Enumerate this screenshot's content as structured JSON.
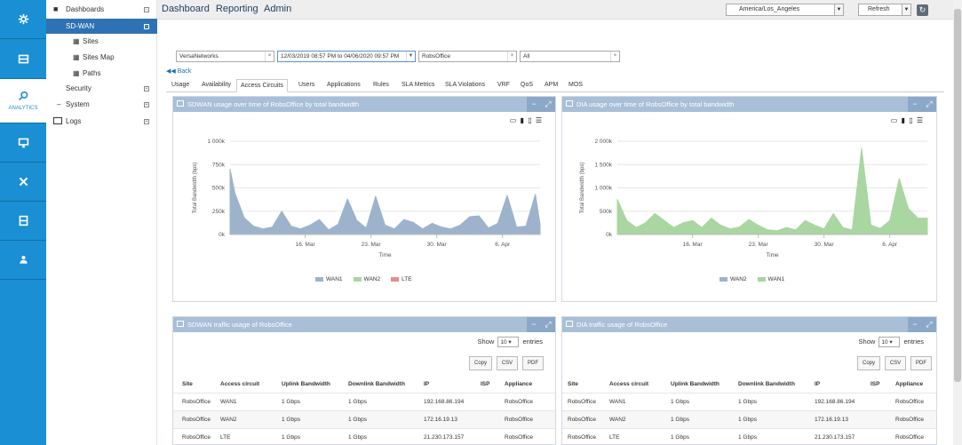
{
  "colors": {
    "rail": "#1a8fd3",
    "panel_head": "#a8bfd7",
    "wan1": "#9db3cc",
    "wan2": "#a9d6a1",
    "lte": "#e08f8f"
  },
  "rail": {
    "items": [
      "settings-icon",
      "dashboard-icon",
      "analytics-icon",
      "monitor-icon",
      "tools-icon",
      "inventory-icon",
      "users-icon"
    ],
    "analytics_label": "ANALYTICS"
  },
  "tree": {
    "dashboards": "Dashboards",
    "sdwan": "SD-WAN",
    "sites": "Sites",
    "sites_map": "Sites Map",
    "paths": "Paths",
    "security": "Security",
    "system": "System",
    "logs": "Logs"
  },
  "topbar": {
    "nav": [
      "Dashboard",
      "Reporting",
      "Admin"
    ],
    "timezone": "America/Los_Angeles",
    "refresh": "Refresh"
  },
  "filters": {
    "org": "VersaNetworks",
    "range": "12/03/2019 08:57 PM to 04/06/2020 09:57 PM",
    "site": "RobsOffice",
    "all": "All"
  },
  "back": "Back",
  "tabs": [
    "Usage",
    "Availability",
    "Access Circuits",
    "Users",
    "Applications",
    "Rules",
    "SLA Metrics",
    "SLA Violations",
    "VRF",
    "QoS",
    "APM",
    "MOS"
  ],
  "left_chart_panel": {
    "title": "SDWAN usage over time of RobsOffice by total bandwidth"
  },
  "right_chart_panel": {
    "title": "DIA usage over time of RobsOffice by total bandwidth"
  },
  "chart_data": [
    {
      "type": "area",
      "title": "SDWAN usage over time of RobsOffice by total bandwidth",
      "xlabel": "Time",
      "ylabel": "Total Bandwidth (bps)",
      "ylim": [
        0,
        1000000
      ],
      "yticks": [
        "0k",
        "250k",
        "500k",
        "750k",
        "1 000k"
      ],
      "xticks": [
        "16. Mar",
        "23. Mar",
        "30. Mar",
        "6. Apr"
      ],
      "x_range_days": [
        0,
        33
      ],
      "x_tick_days": [
        8,
        15,
        22,
        29
      ],
      "series": [
        {
          "name": "WAN1",
          "color": "#9db3cc",
          "x": [
            0,
            0.5,
            1.5,
            2.5,
            3.5,
            4.5,
            5.5,
            6.5,
            7.5,
            8.5,
            9.5,
            10.5,
            11.5,
            12.5,
            13.5,
            14.5,
            15.5,
            16.5,
            17.5,
            18.5,
            19.5,
            20.5,
            21.5,
            22.5,
            23.5,
            24.5,
            25.5,
            26.5,
            27.5,
            28.5,
            29.5,
            30.5,
            31.5,
            32.5,
            33
          ],
          "values": [
            700000,
            450000,
            180000,
            90000,
            60000,
            80000,
            250000,
            90000,
            60000,
            100000,
            160000,
            50000,
            110000,
            380000,
            150000,
            70000,
            410000,
            100000,
            60000,
            160000,
            130000,
            60000,
            120000,
            80000,
            60000,
            100000,
            190000,
            200000,
            70000,
            120000,
            420000,
            80000,
            90000,
            430000,
            110000
          ]
        },
        {
          "name": "WAN2",
          "color": "#a9d6a1",
          "x": [],
          "values": []
        },
        {
          "name": "LTE",
          "color": "#e08f8f",
          "x": [],
          "values": []
        }
      ]
    },
    {
      "type": "area",
      "title": "DIA usage over time of RobsOffice by total bandwidth",
      "xlabel": "Time",
      "ylabel": "Total Bandwidth (bps)",
      "ylim": [
        0,
        2000000
      ],
      "yticks": [
        "0k",
        "500k",
        "1 000k",
        "1 500k",
        "2 000k"
      ],
      "xticks": [
        "16. Mar",
        "23. Mar",
        "30. Mar",
        "6. Apr"
      ],
      "x_range_days": [
        0,
        33
      ],
      "x_tick_days": [
        8,
        15,
        22,
        29
      ],
      "series": [
        {
          "name": "WAN2",
          "color": "#9db3cc",
          "x": [],
          "values": []
        },
        {
          "name": "WAN1",
          "color": "#a9d6a1",
          "x": [
            0,
            1,
            2,
            3,
            4,
            5,
            6,
            7,
            8,
            9,
            10,
            11,
            12,
            13,
            14,
            15,
            16,
            17,
            18,
            19,
            20,
            21,
            22,
            23,
            24,
            25,
            26,
            27,
            28,
            29,
            30,
            31,
            32,
            33
          ],
          "values": [
            750000,
            300000,
            150000,
            250000,
            450000,
            300000,
            150000,
            250000,
            300000,
            150000,
            350000,
            200000,
            120000,
            160000,
            320000,
            200000,
            100000,
            80000,
            150000,
            100000,
            300000,
            200000,
            120000,
            450000,
            150000,
            100000,
            1850000,
            200000,
            130000,
            300000,
            1200000,
            550000,
            350000,
            350000
          ]
        }
      ]
    }
  ],
  "left_table_panel": {
    "title": "SDWAN traffic usage of RobsOffice",
    "show": "Show",
    "entries_count": "10",
    "entries": "entries",
    "buttons": [
      "Copy",
      "CSV",
      "PDF"
    ],
    "columns": [
      "Site",
      "Access circuit",
      "Uplink Bandwidth",
      "Downlink Bandwidth",
      "IP",
      "ISP",
      "Appliance"
    ],
    "rows": [
      [
        "RobsOffice",
        "WAN1",
        "1 Gbps",
        "1 Gbps",
        "192.168.86.194",
        "",
        "RobsOffice"
      ],
      [
        "RobsOffice",
        "WAN2",
        "1 Gbps",
        "1 Gbps",
        "172.16.19.13",
        "",
        "RobsOffice"
      ],
      [
        "RobsOffice",
        "LTE",
        "1 Gbps",
        "1 Gbps",
        "21.230.173.157",
        "",
        "RobsOffice"
      ]
    ]
  },
  "right_table_panel": {
    "title": "DIA traffic usage of RobsOffice",
    "show": "Show",
    "entries_count": "10",
    "entries": "entries",
    "buttons": [
      "Copy",
      "CSV",
      "PDF"
    ],
    "columns": [
      "Site",
      "Access circuit",
      "Uplink Bandwidth",
      "Downlink Bandwidth",
      "IP",
      "ISP",
      "Appliance"
    ],
    "rows": [
      [
        "RobsOffice",
        "WAN1",
        "1 Gbps",
        "1 Gbps",
        "192.168.86.194",
        "",
        "RobsOffice"
      ],
      [
        "RobsOffice",
        "WAN2",
        "1 Gbps",
        "1 Gbps",
        "172.16.19.13",
        "",
        "RobsOffice"
      ],
      [
        "RobsOffice",
        "LTE",
        "1 Gbps",
        "1 Gbps",
        "21.230.173.157",
        "",
        "RobsOffice"
      ]
    ]
  }
}
